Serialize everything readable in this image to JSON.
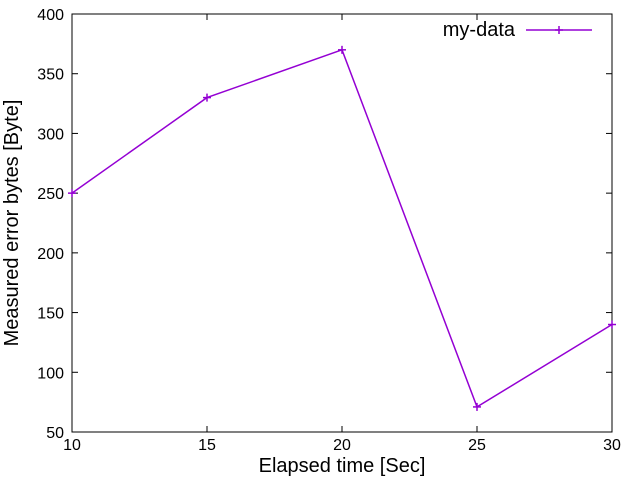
{
  "chart_data": {
    "type": "line",
    "title": "",
    "xlabel": "Elapsed time [Sec]",
    "ylabel": "Measured error bytes [Byte]",
    "xlim": [
      10,
      30
    ],
    "ylim": [
      50,
      400
    ],
    "xticks": [
      10,
      15,
      20,
      25,
      30
    ],
    "yticks": [
      50,
      100,
      150,
      200,
      250,
      300,
      350,
      400
    ],
    "grid": false,
    "legend_position": "top-right",
    "series": [
      {
        "name": "my-data",
        "color": "#9400d3",
        "marker": "plus",
        "x": [
          10,
          15,
          20,
          25,
          30
        ],
        "y": [
          250,
          330,
          370,
          71,
          140
        ]
      }
    ]
  }
}
